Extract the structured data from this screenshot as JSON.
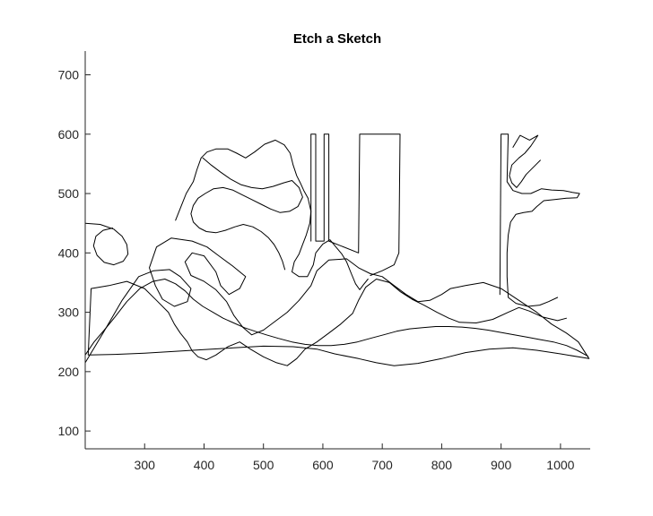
{
  "chart_data": {
    "type": "line",
    "title": "Etch a Sketch",
    "xlabel": "",
    "ylabel": "",
    "xlim": [
      200,
      1050
    ],
    "ylim": [
      70,
      740
    ],
    "xticks": [
      300,
      400,
      500,
      600,
      700,
      800,
      900,
      1000
    ],
    "yticks": [
      100,
      200,
      300,
      400,
      500,
      600,
      700
    ],
    "xtick_labels": [
      "300",
      "400",
      "500",
      "600",
      "700",
      "800",
      "900",
      "1000"
    ],
    "ytick_labels": [
      "100",
      "200",
      "300",
      "400",
      "500",
      "600",
      "700"
    ],
    "grid": false,
    "legend": "none",
    "line_color": "#000000",
    "series": [
      {
        "values": [
          [
            200,
            215
          ],
          [
            230,
            265
          ],
          [
            262,
            320
          ],
          [
            290,
            360
          ],
          [
            315,
            370
          ],
          [
            342,
            372
          ],
          [
            360,
            360
          ],
          [
            378,
            340
          ],
          [
            372,
            318
          ],
          [
            350,
            310
          ],
          [
            330,
            322
          ],
          [
            318,
            345
          ],
          [
            308,
            375
          ],
          [
            320,
            410
          ],
          [
            345,
            425
          ],
          [
            380,
            420
          ],
          [
            405,
            410
          ],
          [
            425,
            395
          ],
          [
            448,
            378
          ],
          [
            470,
            360
          ],
          [
            460,
            340
          ],
          [
            442,
            330
          ],
          [
            428,
            345
          ],
          [
            420,
            368
          ],
          [
            400,
            395
          ],
          [
            380,
            400
          ],
          [
            368,
            385
          ],
          [
            378,
            362
          ],
          [
            400,
            352
          ],
          [
            420,
            338
          ],
          [
            438,
            318
          ],
          [
            450,
            295
          ],
          [
            465,
            275
          ],
          [
            480,
            262
          ],
          [
            500,
            270
          ],
          [
            520,
            285
          ],
          [
            540,
            300
          ],
          [
            560,
            320
          ],
          [
            580,
            345
          ],
          [
            590,
            370
          ],
          [
            610,
            388
          ],
          [
            640,
            390
          ],
          [
            660,
            375
          ],
          [
            680,
            365
          ],
          [
            700,
            360
          ],
          [
            720,
            345
          ],
          [
            740,
            330
          ],
          [
            760,
            318
          ],
          [
            780,
            320
          ],
          [
            800,
            330
          ],
          [
            815,
            340
          ],
          [
            840,
            345
          ],
          [
            870,
            350
          ],
          [
            900,
            340
          ],
          [
            930,
            320
          ],
          [
            960,
            300
          ],
          [
            985,
            280
          ],
          [
            1010,
            265
          ],
          [
            1030,
            250
          ],
          [
            1048,
            222
          ],
          [
            1000,
            230
          ],
          [
            960,
            236
          ],
          [
            920,
            240
          ],
          [
            880,
            238
          ],
          [
            840,
            232
          ],
          [
            800,
            222
          ],
          [
            760,
            214
          ],
          [
            720,
            210
          ],
          [
            690,
            215
          ],
          [
            660,
            222
          ],
          [
            620,
            230
          ],
          [
            590,
            238
          ],
          [
            550,
            242
          ],
          [
            500,
            243
          ],
          [
            450,
            240
          ],
          [
            400,
            237
          ],
          [
            350,
            234
          ],
          [
            300,
            231
          ],
          [
            250,
            229
          ],
          [
            205,
            228
          ],
          [
            210,
            340
          ],
          [
            240,
            345
          ],
          [
            270,
            352
          ],
          [
            300,
            340
          ],
          [
            320,
            320
          ],
          [
            340,
            300
          ],
          [
            350,
            280
          ],
          [
            360,
            265
          ],
          [
            372,
            250
          ],
          [
            380,
            235
          ],
          [
            390,
            225
          ],
          [
            404,
            220
          ],
          [
            420,
            228
          ],
          [
            440,
            242
          ],
          [
            460,
            250
          ],
          [
            478,
            238
          ],
          [
            500,
            225
          ],
          [
            522,
            215
          ],
          [
            540,
            210
          ],
          [
            556,
            222
          ],
          [
            570,
            238
          ],
          [
            590,
            250
          ],
          [
            610,
            265
          ],
          [
            630,
            280
          ],
          [
            650,
            298
          ],
          [
            660,
            320
          ],
          [
            672,
            342
          ],
          [
            690,
            356
          ],
          [
            712,
            350
          ],
          [
            730,
            335
          ],
          [
            750,
            322
          ],
          [
            770,
            312
          ],
          [
            792,
            300
          ],
          [
            812,
            290
          ],
          [
            830,
            283
          ],
          [
            858,
            282
          ],
          [
            886,
            288
          ],
          [
            912,
            300
          ],
          [
            930,
            308
          ],
          [
            948,
            302
          ],
          [
            970,
            292
          ],
          [
            995,
            286
          ],
          [
            1010,
            290
          ]
        ]
      },
      {
        "values": [
          [
            352,
            455
          ],
          [
            362,
            480
          ],
          [
            370,
            500
          ],
          [
            382,
            520
          ],
          [
            388,
            540
          ],
          [
            395,
            560
          ],
          [
            405,
            570
          ],
          [
            420,
            575
          ],
          [
            440,
            575
          ],
          [
            455,
            568
          ],
          [
            470,
            560
          ],
          [
            485,
            570
          ],
          [
            502,
            583
          ],
          [
            520,
            590
          ],
          [
            535,
            582
          ],
          [
            545,
            568
          ],
          [
            550,
            548
          ],
          [
            556,
            530
          ],
          [
            562,
            518
          ],
          [
            568,
            505
          ],
          [
            575,
            492
          ],
          [
            580,
            470
          ],
          [
            578,
            450
          ],
          [
            572,
            430
          ],
          [
            565,
            412
          ],
          [
            560,
            398
          ],
          [
            552,
            385
          ],
          [
            548,
            368
          ],
          [
            560,
            360
          ],
          [
            574,
            360
          ],
          [
            584,
            380
          ],
          [
            588,
            400
          ],
          [
            600,
            415
          ],
          [
            612,
            422
          ],
          [
            622,
            410
          ],
          [
            632,
            398
          ],
          [
            640,
            385
          ],
          [
            648,
            365
          ],
          [
            655,
            348
          ],
          [
            662,
            338
          ],
          [
            668,
            346
          ],
          [
            676,
            356
          ]
        ]
      },
      {
        "values": [
          [
            580,
            420
          ],
          [
            580,
            600
          ],
          [
            588,
            600
          ],
          [
            588,
            420
          ],
          [
            602,
            420
          ],
          [
            602,
            600
          ],
          [
            610,
            600
          ],
          [
            610,
            420
          ],
          [
            660,
            400
          ],
          [
            662,
            600
          ],
          [
            730,
            600
          ],
          [
            728,
            400
          ],
          [
            720,
            380
          ],
          [
            700,
            370
          ],
          [
            680,
            362
          ]
        ]
      },
      {
        "values": [
          [
            898,
            330
          ],
          [
            900,
            600
          ],
          [
            912,
            600
          ],
          [
            910,
            520
          ],
          [
            920,
            505
          ],
          [
            935,
            500
          ],
          [
            950,
            500
          ],
          [
            968,
            508
          ],
          [
            985,
            506
          ],
          [
            1005,
            505
          ],
          [
            1020,
            502
          ],
          [
            1032,
            500
          ],
          [
            1028,
            493
          ],
          [
            1010,
            492
          ],
          [
            990,
            490
          ],
          [
            972,
            488
          ],
          [
            960,
            478
          ],
          [
            952,
            470
          ],
          [
            938,
            468
          ],
          [
            925,
            465
          ],
          [
            916,
            452
          ],
          [
            912,
            430
          ],
          [
            910,
            400
          ],
          [
            910,
            360
          ],
          [
            912,
            325
          ],
          [
            925,
            315
          ],
          [
            945,
            310
          ],
          [
            965,
            312
          ],
          [
            980,
            318
          ],
          [
            995,
            325
          ]
        ]
      },
      {
        "values": [
          [
            920,
            578
          ],
          [
            932,
            598
          ],
          [
            948,
            590
          ],
          [
            962,
            598
          ],
          [
            950,
            580
          ],
          [
            940,
            568
          ],
          [
            930,
            560
          ],
          [
            918,
            548
          ],
          [
            914,
            530
          ],
          [
            918,
            518
          ],
          [
            926,
            510
          ],
          [
            934,
            520
          ],
          [
            942,
            532
          ],
          [
            952,
            542
          ],
          [
            958,
            548
          ],
          [
            966,
            556
          ]
        ]
      },
      {
        "values": [
          [
            200,
            228
          ],
          [
            215,
            250
          ],
          [
            232,
            270
          ],
          [
            250,
            292
          ],
          [
            270,
            318
          ],
          [
            292,
            340
          ],
          [
            314,
            352
          ],
          [
            334,
            356
          ],
          [
            352,
            348
          ],
          [
            368,
            336
          ],
          [
            382,
            322
          ],
          [
            398,
            310
          ],
          [
            415,
            300
          ],
          [
            432,
            290
          ],
          [
            450,
            282
          ],
          [
            468,
            274
          ],
          [
            486,
            268
          ],
          [
            505,
            262
          ],
          [
            525,
            256
          ],
          [
            548,
            250
          ],
          [
            570,
            246
          ],
          [
            592,
            244
          ],
          [
            614,
            244
          ],
          [
            636,
            246
          ],
          [
            658,
            250
          ],
          [
            680,
            256
          ],
          [
            702,
            262
          ],
          [
            724,
            268
          ],
          [
            746,
            272
          ],
          [
            768,
            274
          ],
          [
            790,
            276
          ],
          [
            812,
            276
          ],
          [
            834,
            275
          ],
          [
            856,
            273
          ],
          [
            878,
            270
          ],
          [
            900,
            266
          ],
          [
            922,
            262
          ],
          [
            944,
            258
          ],
          [
            966,
            254
          ],
          [
            988,
            250
          ],
          [
            1010,
            244
          ],
          [
            1028,
            236
          ],
          [
            1046,
            226
          ]
        ]
      },
      {
        "values": [
          [
            200,
            450
          ],
          [
            225,
            448
          ],
          [
            248,
            440
          ],
          [
            262,
            428
          ],
          [
            270,
            414
          ],
          [
            272,
            398
          ],
          [
            264,
            386
          ],
          [
            248,
            380
          ],
          [
            232,
            384
          ],
          [
            220,
            396
          ],
          [
            214,
            412
          ],
          [
            218,
            428
          ],
          [
            230,
            438
          ],
          [
            246,
            442
          ]
        ]
      },
      {
        "values": [
          [
            398,
            560
          ],
          [
            412,
            548
          ],
          [
            428,
            536
          ],
          [
            445,
            524
          ],
          [
            462,
            515
          ],
          [
            480,
            510
          ],
          [
            498,
            508
          ],
          [
            516,
            512
          ],
          [
            534,
            518
          ],
          [
            548,
            522
          ],
          [
            560,
            510
          ],
          [
            566,
            494
          ],
          [
            558,
            478
          ],
          [
            544,
            470
          ],
          [
            528,
            468
          ],
          [
            512,
            474
          ],
          [
            496,
            482
          ],
          [
            480,
            490
          ],
          [
            464,
            498
          ],
          [
            448,
            506
          ],
          [
            432,
            510
          ],
          [
            416,
            508
          ],
          [
            402,
            500
          ],
          [
            390,
            492
          ],
          [
            382,
            480
          ],
          [
            378,
            466
          ],
          [
            382,
            452
          ],
          [
            392,
            442
          ],
          [
            404,
            436
          ],
          [
            420,
            434
          ],
          [
            436,
            438
          ],
          [
            452,
            444
          ],
          [
            466,
            448
          ],
          [
            482,
            444
          ],
          [
            496,
            436
          ],
          [
            508,
            426
          ],
          [
            518,
            414
          ],
          [
            526,
            400
          ],
          [
            532,
            386
          ],
          [
            536,
            372
          ]
        ]
      }
    ]
  }
}
